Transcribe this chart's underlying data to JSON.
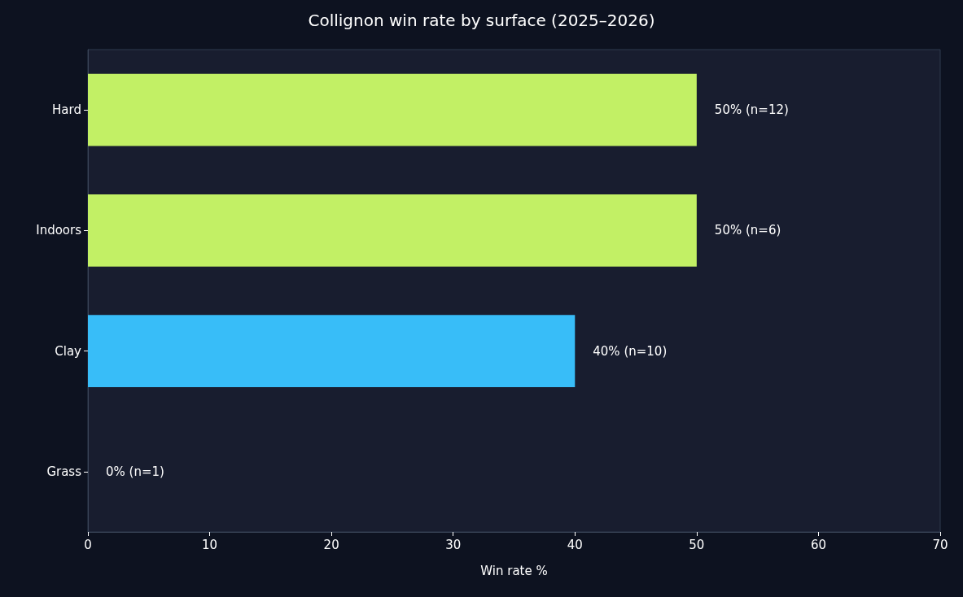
{
  "chart_data": {
    "type": "bar",
    "orientation": "horizontal",
    "title": "Collignon win rate by surface (2025–2026)",
    "xlabel": "Win rate %",
    "categories": [
      "Hard",
      "Indoors",
      "Clay",
      "Grass"
    ],
    "values": [
      50,
      50,
      40,
      0
    ],
    "colors": [
      "#c2f065",
      "#c2f065",
      "#38bdf8",
      "#38bdf8"
    ],
    "value_labels": [
      "50% (n=12)",
      "50% (n=6)",
      "40% (n=10)",
      "0% (n=1)"
    ],
    "xlim": [
      0,
      70
    ],
    "xticks": [
      0,
      10,
      20,
      30,
      40,
      50,
      60,
      70
    ],
    "grid": false
  }
}
